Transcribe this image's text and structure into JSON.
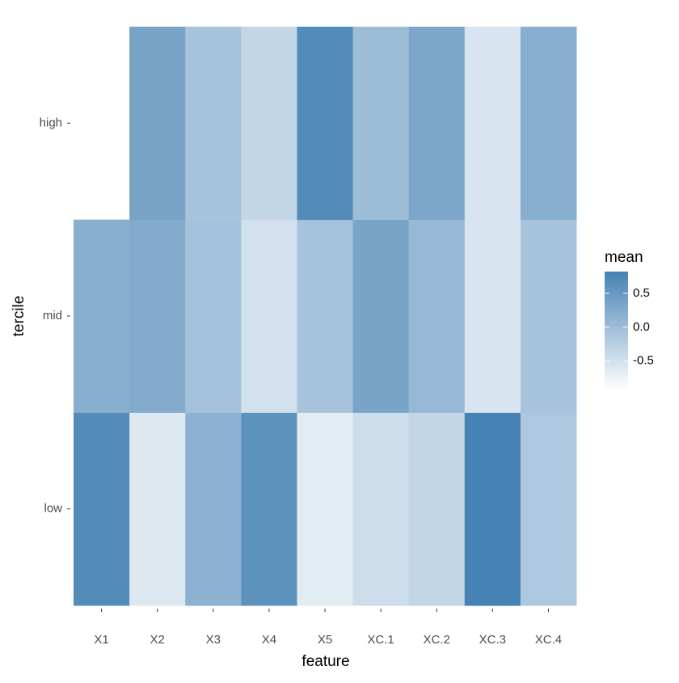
{
  "chart_data": {
    "type": "heatmap",
    "x_label": "feature",
    "y_label": "tercile",
    "legend_title": "mean",
    "x": [
      "X1",
      "X2",
      "X3",
      "X4",
      "X5",
      "XC.1",
      "XC.2",
      "XC.3",
      "XC.4"
    ],
    "y": [
      "low",
      "mid",
      "high"
    ],
    "values": [
      [
        0.7,
        -0.6,
        0.15,
        0.6,
        -0.65,
        -0.45,
        -0.35,
        0.82,
        -0.15
      ],
      [
        0.2,
        0.25,
        -0.05,
        -0.5,
        -0.1,
        0.35,
        0.05,
        -0.55,
        -0.1
      ],
      [
        null,
        0.35,
        -0.1,
        -0.35,
        0.7,
        0.0,
        0.3,
        -0.55,
        0.2
      ]
    ],
    "color_low": "#ffffff",
    "color_high": "#4682b4",
    "clim": [
      -0.92,
      0.82
    ],
    "cticks": [
      -0.5,
      {
        "value": 0,
        "label": "0.0"
      },
      0.5
    ]
  }
}
